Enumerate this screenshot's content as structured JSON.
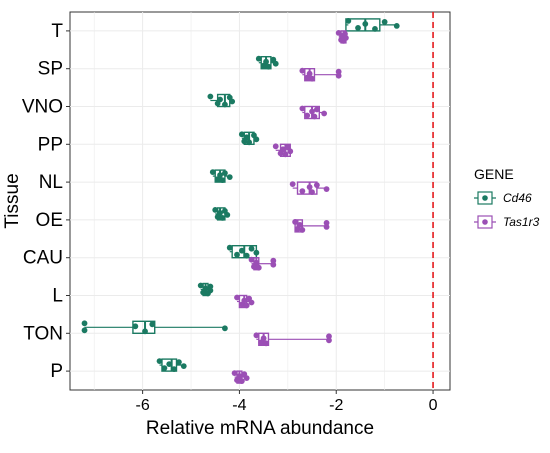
{
  "chart_data": {
    "type": "box-jitter",
    "orientation": "horizontal",
    "xlabel": "Relative mRNA abundance",
    "ylabel": "Tissue",
    "xlim": [
      -7.5,
      0.35
    ],
    "x_ticks": [
      -6,
      -4,
      -2,
      0
    ],
    "x_tick_labels": [
      "-6",
      "-4",
      "-2",
      "0"
    ],
    "reference_line": {
      "x": 0,
      "color": "#e41a1c",
      "style": "dashed"
    },
    "grid": true,
    "legend": {
      "title": "GENE",
      "placement": "right",
      "entries": [
        {
          "label": "Cd46",
          "color": "#1b7a62"
        },
        {
          "label": "Tas1r3",
          "color": "#9b4fb5"
        }
      ]
    },
    "categories": [
      "T",
      "SP",
      "VNO",
      "PP",
      "NL",
      "OE",
      "CAU",
      "L",
      "TON",
      "P"
    ],
    "series": [
      {
        "name": "Cd46",
        "color": "#1b7a62",
        "box": [
          [
            -1.8,
            -1.4,
            -1.1
          ],
          [
            -3.55,
            -3.45,
            -3.35
          ],
          [
            -4.45,
            -4.3,
            -4.2
          ],
          [
            -3.9,
            -3.8,
            -3.7
          ],
          [
            -4.5,
            -4.4,
            -4.3
          ],
          [
            -4.45,
            -4.4,
            -4.3
          ],
          [
            -4.15,
            -3.9,
            -3.65
          ],
          [
            -4.75,
            -4.7,
            -4.65
          ],
          [
            -6.2,
            -5.95,
            -5.75
          ],
          [
            -5.6,
            -5.4,
            -5.3
          ]
        ],
        "points": [
          [
            -1.75,
            -1.55,
            -1.4,
            -1.2,
            -1.0,
            -0.75
          ],
          [
            -3.6,
            -3.5,
            -3.45,
            -3.4,
            -3.3,
            -3.25
          ],
          [
            -4.6,
            -4.45,
            -4.4,
            -4.3,
            -4.2,
            -4.15
          ],
          [
            -3.95,
            -3.9,
            -3.85,
            -3.8,
            -3.7,
            -3.65
          ],
          [
            -4.55,
            -4.45,
            -4.4,
            -4.35,
            -4.3,
            -4.2
          ],
          [
            -4.5,
            -4.45,
            -4.4,
            -4.35,
            -4.3,
            -4.25
          ],
          [
            -4.2,
            -4.05,
            -3.95,
            -3.85,
            -3.75,
            -3.65
          ],
          [
            -4.8,
            -4.75,
            -4.7,
            -4.65,
            -4.6,
            -4.6
          ],
          [
            -7.2,
            -7.2,
            -6.15,
            -5.95,
            -5.8,
            -4.3
          ],
          [
            -5.65,
            -5.55,
            -5.45,
            -5.35,
            -5.25,
            -5.15
          ]
        ]
      },
      {
        "name": "Tas1r3",
        "color": "#9b4fb5",
        "box": [
          [
            -1.9,
            -1.85,
            -1.8
          ],
          [
            -2.65,
            -2.55,
            -2.45
          ],
          [
            -2.65,
            -2.5,
            -2.35
          ],
          [
            -3.15,
            -3.05,
            -2.95
          ],
          [
            -2.8,
            -2.55,
            -2.4
          ],
          [
            -2.85,
            -2.8,
            -2.7
          ],
          [
            -3.7,
            -3.65,
            -3.6
          ],
          [
            -4.0,
            -3.9,
            -3.85
          ],
          [
            -3.6,
            -3.5,
            -3.4
          ],
          [
            -4.05,
            -4.0,
            -3.95
          ]
        ],
        "points": [
          [
            -1.95,
            -1.9,
            -1.88,
            -1.85,
            -1.82,
            -1.8
          ],
          [
            -2.7,
            -2.6,
            -2.55,
            -2.5,
            -1.95,
            -1.95
          ],
          [
            -2.7,
            -2.6,
            -2.5,
            -2.45,
            -2.4,
            -2.25
          ],
          [
            -3.25,
            -3.15,
            -3.1,
            -3.05,
            -3.0,
            -2.95
          ],
          [
            -2.9,
            -2.7,
            -2.55,
            -2.5,
            -2.4,
            -2.2
          ],
          [
            -2.85,
            -2.8,
            -2.75,
            -2.7,
            -2.2,
            -2.2
          ],
          [
            -3.75,
            -3.7,
            -3.65,
            -3.6,
            -3.3,
            -3.3
          ],
          [
            -4.05,
            -3.95,
            -3.9,
            -3.85,
            -3.8,
            -3.75
          ],
          [
            -3.65,
            -3.55,
            -3.5,
            -3.45,
            -2.15,
            -2.15
          ],
          [
            -4.1,
            -4.05,
            -4.0,
            -3.95,
            -3.9,
            -3.85
          ]
        ]
      }
    ]
  }
}
